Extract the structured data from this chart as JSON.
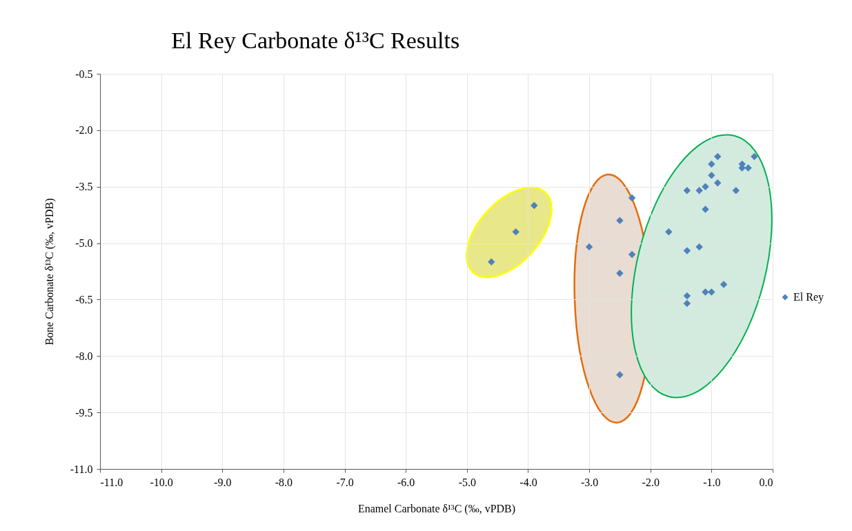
{
  "chart_data": {
    "type": "scatter",
    "title": "El Rey Carbonate δ¹³C Results",
    "xlabel": "Enamel  Carbonate δ¹³C (‰, vPDB)",
    "ylabel": "Bone Carbonate δ¹³C (‰, vPDB)",
    "x": [
      -4.6,
      -4.2,
      -3.9,
      -3.0,
      -2.5,
      -2.3,
      -2.3,
      -2.5,
      -2.5,
      -0.9,
      -1.0,
      -0.3,
      -0.5,
      -0.5,
      -0.4,
      -1.0,
      -0.9,
      -1.4,
      -1.2,
      -1.1,
      -0.6,
      -1.1,
      -1.7,
      -1.4,
      -1.2,
      -0.8,
      -1.1,
      -1.0,
      -1.4,
      -1.4
    ],
    "series": [
      {
        "name": "El Rey",
        "color": "#4f81bd",
        "values": [
          -5.5,
          -4.7,
          -4.0,
          -5.1,
          -4.4,
          -3.8,
          -5.3,
          -5.8,
          -8.5,
          -2.7,
          -2.9,
          -2.7,
          -2.9,
          -3.0,
          -3.0,
          -3.2,
          -3.4,
          -3.6,
          -3.6,
          -3.5,
          -3.6,
          -4.1,
          -4.7,
          -5.2,
          -5.1,
          -6.1,
          -6.3,
          -6.3,
          -6.4,
          -6.6
        ]
      }
    ],
    "xlim": [
      -11,
      0
    ],
    "ylim": [
      -11,
      -0.5
    ],
    "xticks": [
      {
        "value": -11,
        "label": "-11.0"
      },
      {
        "value": -10,
        "label": "-10.0"
      },
      {
        "value": -9,
        "label": "-9.0"
      },
      {
        "value": -8,
        "label": "-8.0"
      },
      {
        "value": -7,
        "label": "-7.0"
      },
      {
        "value": -6,
        "label": "-6.0"
      },
      {
        "value": -5,
        "label": "-5.0"
      },
      {
        "value": -4,
        "label": "-4.0"
      },
      {
        "value": -3,
        "label": "-3.0"
      },
      {
        "value": -2,
        "label": "-2.0"
      },
      {
        "value": -1,
        "label": "-1.0"
      },
      {
        "value": 0,
        "label": "0.0"
      }
    ],
    "yticks": [
      {
        "value": -11,
        "label": "-11.0"
      },
      {
        "value": -9.5,
        "label": "-9.5"
      },
      {
        "value": -8,
        "label": "-8.0"
      },
      {
        "value": -6.5,
        "label": "-6.5"
      },
      {
        "value": -5,
        "label": "-5.0"
      },
      {
        "value": -3.5,
        "label": "-3.5"
      },
      {
        "value": -2,
        "label": "-2.0"
      },
      {
        "value": -0.5,
        "label": "-0.5"
      }
    ],
    "grid": true,
    "legend": "right",
    "marker": "diamond"
  }
}
